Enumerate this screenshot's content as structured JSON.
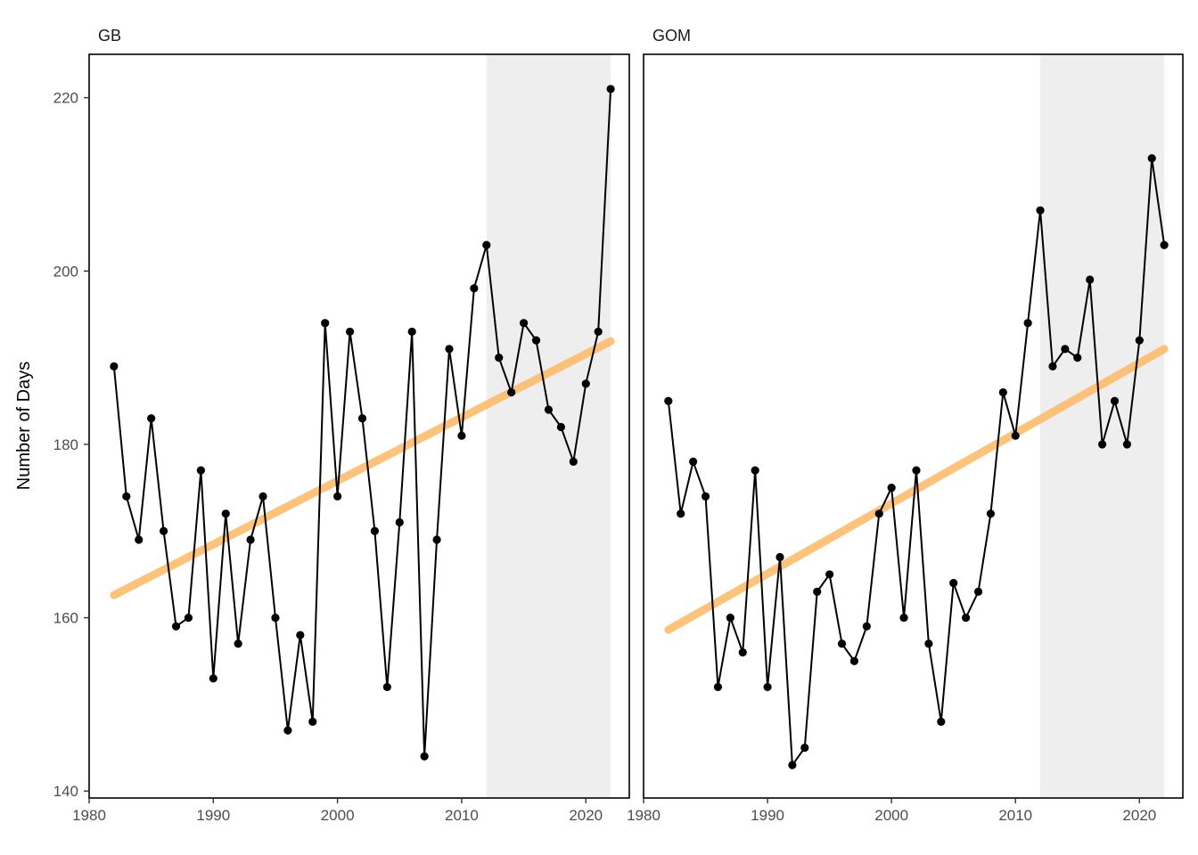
{
  "chart_data": {
    "type": "line",
    "ylabel": "Number of Days",
    "xlabel": "",
    "xlim": [
      1980,
      2023.5
    ],
    "ylim": [
      139.2,
      225
    ],
    "x_ticks": [
      1980,
      1990,
      2000,
      2010,
      2020
    ],
    "y_ticks": [
      140,
      160,
      180,
      200,
      220
    ],
    "grid": false,
    "colors": {
      "series_line": "#000000",
      "trend_line": "#FDB863",
      "shaded_region": "#EEEEEE",
      "panel_border": "#000000"
    },
    "panels": [
      {
        "label": "GB",
        "shaded_x_range": [
          2012,
          2022
        ],
        "x": [
          1982,
          1983,
          1984,
          1985,
          1986,
          1987,
          1988,
          1989,
          1990,
          1991,
          1992,
          1993,
          1994,
          1995,
          1996,
          1997,
          1998,
          1999,
          2000,
          2001,
          2002,
          2003,
          2004,
          2005,
          2006,
          2007,
          2008,
          2009,
          2010,
          2011,
          2012,
          2013,
          2014,
          2015,
          2016,
          2017,
          2018,
          2019,
          2020,
          2021,
          2022
        ],
        "values": [
          189,
          174,
          169,
          183,
          170,
          159,
          160,
          177,
          153,
          172,
          157,
          169,
          174,
          160,
          147,
          158,
          148,
          194,
          174,
          193,
          183,
          170,
          152,
          171,
          193,
          144,
          169,
          191,
          181,
          198,
          203,
          190,
          186,
          194,
          192,
          184,
          182,
          178,
          187,
          193,
          221
        ],
        "trend": {
          "x": [
            1982,
            2022
          ],
          "y": [
            162.6,
            191.9
          ]
        }
      },
      {
        "label": "GOM",
        "shaded_x_range": [
          2012,
          2022
        ],
        "x": [
          1982,
          1983,
          1984,
          1985,
          1986,
          1987,
          1988,
          1989,
          1990,
          1991,
          1992,
          1993,
          1994,
          1995,
          1996,
          1997,
          1998,
          1999,
          2000,
          2001,
          2002,
          2003,
          2004,
          2005,
          2006,
          2007,
          2008,
          2009,
          2010,
          2011,
          2012,
          2013,
          2014,
          2015,
          2016,
          2017,
          2018,
          2019,
          2020,
          2021,
          2022
        ],
        "values": [
          185,
          172,
          178,
          174,
          152,
          160,
          156,
          177,
          152,
          167,
          143,
          145,
          163,
          165,
          157,
          155,
          159,
          172,
          175,
          160,
          177,
          157,
          148,
          164,
          160,
          163,
          172,
          186,
          181,
          194,
          207,
          189,
          191,
          190,
          199,
          180,
          185,
          180,
          192,
          213,
          203
        ],
        "trend": {
          "x": [
            1982,
            2022
          ],
          "y": [
            158.6,
            191.0
          ]
        }
      }
    ]
  }
}
